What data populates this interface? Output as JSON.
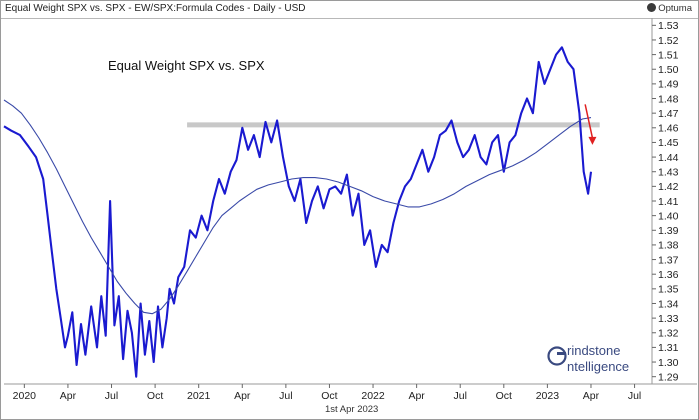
{
  "header": {
    "title": "Equal Weight SPX vs. SPX - EW/SPX:Formula Codes - Daily - USD",
    "brand": "Optuma"
  },
  "footer": {
    "date": "1st Apr 2023"
  },
  "logo": {
    "line1": "rindstone",
    "line2": "ntelligence"
  },
  "colors": {
    "price": "#1a1ad0",
    "ma": "#3a4aa8",
    "resistance": "#c8c8c8",
    "arrow": "#e02020",
    "background": "#ffffff"
  },
  "chart_data": {
    "type": "line",
    "title": "Equal Weight SPX vs. SPX",
    "x_tick_labels": [
      "2020",
      "Apr",
      "Jul",
      "Oct",
      "2021",
      "Apr",
      "Jul",
      "Oct",
      "2022",
      "Apr",
      "Jul",
      "Oct",
      "2023",
      "Apr",
      "Jul"
    ],
    "y_ticks": [
      1.29,
      1.3,
      1.31,
      1.32,
      1.33,
      1.34,
      1.35,
      1.36,
      1.37,
      1.38,
      1.39,
      1.4,
      1.41,
      1.42,
      1.43,
      1.44,
      1.45,
      1.46,
      1.47,
      1.48,
      1.49,
      1.5,
      1.51,
      1.52,
      1.53
    ],
    "ylim": [
      1.285,
      1.535
    ],
    "y_axis_side": "right",
    "grid": false,
    "x_tick_months": [
      0,
      3,
      6,
      9,
      12,
      15,
      18,
      21,
      24,
      27,
      30,
      33,
      36,
      39,
      42
    ],
    "xlim_months": [
      -1.4,
      43.2
    ],
    "series": [
      {
        "x_months": [
          -1.4,
          -0.9,
          -0.3,
          0.3,
          0.8,
          1.3,
          1.6,
          1.9,
          2.2,
          2.5,
          2.8,
          3.0,
          3.3,
          3.6,
          3.9,
          4.2,
          4.6,
          5.0,
          5.3,
          5.6,
          5.9,
          6.2,
          6.5,
          6.8,
          7.1,
          7.4,
          7.7,
          8.0,
          8.3,
          8.6,
          8.9,
          9.2,
          9.5,
          9.8,
          10.0,
          10.3,
          10.6,
          11.0,
          11.4,
          11.8,
          12.2,
          12.6,
          13.0,
          13.4,
          13.8,
          14.2,
          14.6,
          15.0,
          15.4,
          15.8,
          16.2,
          16.6,
          17.0,
          17.4,
          17.8,
          18.2,
          18.6,
          19.0,
          19.4,
          19.8,
          20.2,
          20.6,
          21.0,
          21.4,
          21.8,
          22.2,
          22.6,
          23.0,
          23.4,
          23.8,
          24.2,
          24.6,
          25.0,
          25.4,
          25.8,
          26.2,
          26.6,
          27.0,
          27.4,
          27.8,
          28.2,
          28.6,
          29.0,
          29.4,
          29.8,
          30.2,
          30.6,
          31.0,
          31.4,
          31.8,
          32.2,
          32.6,
          33.0,
          33.4,
          33.8,
          34.2,
          34.6,
          35.0,
          35.4,
          35.8,
          36.2,
          36.6,
          37.0,
          37.4,
          37.8,
          38.2,
          38.5,
          38.8,
          39.0
        ],
        "values": [
          1.461,
          1.458,
          1.455,
          1.447,
          1.44,
          1.425,
          1.4,
          1.375,
          1.35,
          1.33,
          1.31,
          1.318,
          1.334,
          1.298,
          1.326,
          1.305,
          1.338,
          1.31,
          1.345,
          1.318,
          1.41,
          1.325,
          1.345,
          1.302,
          1.335,
          1.32,
          1.29,
          1.34,
          1.305,
          1.328,
          1.3,
          1.338,
          1.31,
          1.33,
          1.35,
          1.34,
          1.358,
          1.365,
          1.39,
          1.385,
          1.4,
          1.39,
          1.41,
          1.425,
          1.415,
          1.43,
          1.438,
          1.46,
          1.445,
          1.455,
          1.44,
          1.464,
          1.45,
          1.465,
          1.44,
          1.42,
          1.41,
          1.425,
          1.395,
          1.41,
          1.42,
          1.405,
          1.418,
          1.42,
          1.415,
          1.428,
          1.4,
          1.415,
          1.38,
          1.39,
          1.365,
          1.38,
          1.375,
          1.395,
          1.41,
          1.42,
          1.425,
          1.435,
          1.445,
          1.43,
          1.44,
          1.455,
          1.458,
          1.465,
          1.45,
          1.44,
          1.445,
          1.455,
          1.44,
          1.435,
          1.45,
          1.455,
          1.43,
          1.45,
          1.455,
          1.47,
          1.48,
          1.47,
          1.505,
          1.49,
          1.5,
          1.51,
          1.515,
          1.505,
          1.5,
          1.47,
          1.43,
          1.415,
          1.43
        ]
      },
      {
        "x_months": [
          -1.4,
          -0.8,
          -0.2,
          0.4,
          1.0,
          1.6,
          2.2,
          2.8,
          3.4,
          4.0,
          4.6,
          5.2,
          5.8,
          6.4,
          7.0,
          7.6,
          8.2,
          8.8,
          9.4,
          10.0,
          10.6,
          11.2,
          11.8,
          12.4,
          13.0,
          13.6,
          14.2,
          14.8,
          15.4,
          16.0,
          16.8,
          17.6,
          18.4,
          19.2,
          20.0,
          20.8,
          21.6,
          22.4,
          23.2,
          24.0,
          24.8,
          25.6,
          26.4,
          27.2,
          28.0,
          28.8,
          29.6,
          30.4,
          31.2,
          32.0,
          32.8,
          33.6,
          34.4,
          35.2,
          36.0,
          36.8,
          37.6,
          38.4,
          39.0
        ],
        "values": [
          1.479,
          1.475,
          1.47,
          1.462,
          1.453,
          1.443,
          1.432,
          1.42,
          1.408,
          1.396,
          1.385,
          1.375,
          1.365,
          1.355,
          1.347,
          1.34,
          1.334,
          1.333,
          1.336,
          1.343,
          1.352,
          1.362,
          1.372,
          1.382,
          1.392,
          1.4,
          1.405,
          1.41,
          1.414,
          1.418,
          1.421,
          1.423,
          1.425,
          1.426,
          1.426,
          1.425,
          1.423,
          1.42,
          1.417,
          1.413,
          1.41,
          1.408,
          1.406,
          1.406,
          1.408,
          1.411,
          1.415,
          1.42,
          1.424,
          1.428,
          1.431,
          1.434,
          1.438,
          1.443,
          1.449,
          1.455,
          1.461,
          1.466,
          1.467
        ]
      }
    ],
    "resistance_level": 1.462,
    "resistance_from_month": 11.2,
    "resistance_to_month": 39.6,
    "arrow": {
      "from_month": 38.6,
      "from_value": 1.476,
      "to_month": 39.1,
      "to_value": 1.449
    }
  }
}
